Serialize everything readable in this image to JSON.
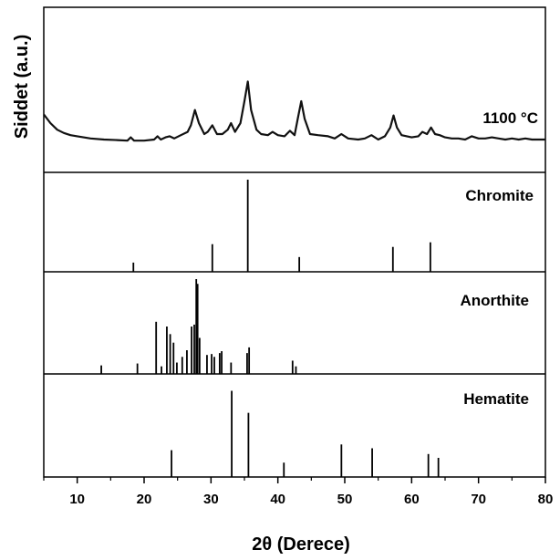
{
  "chart_data": {
    "type": "line",
    "ylabel": "Siddet (a.u.)",
    "xlabel": "2θ (Derece)",
    "xlim": [
      5,
      80
    ],
    "x_ticks": [
      10,
      20,
      30,
      40,
      50,
      60,
      70,
      80
    ],
    "y_ticks_shown": false,
    "grid": false,
    "panels": [
      {
        "name": "1100 °C",
        "type": "line",
        "ylim": [
          0,
          100
        ],
        "x": [
          5,
          6,
          7,
          8,
          9,
          10,
          12,
          14,
          16,
          17.5,
          18,
          18.5,
          20,
          21.5,
          22,
          22.5,
          23.2,
          23.8,
          24.5,
          25.5,
          26.5,
          27,
          27.6,
          28.2,
          29,
          29.5,
          30.2,
          30.9,
          31.7,
          32.5,
          33,
          33.6,
          34.4,
          35,
          35.5,
          36,
          36.8,
          37.5,
          38.5,
          39.2,
          40,
          41,
          41.8,
          42.5,
          43,
          43.5,
          44,
          44.8,
          46,
          47.5,
          48.5,
          49.5,
          50.5,
          52,
          53,
          54,
          55,
          56,
          56.8,
          57.3,
          57.8,
          58.5,
          60,
          61,
          61.6,
          62.3,
          62.9,
          63.5,
          64.2,
          65,
          66,
          67,
          68,
          69,
          70,
          71,
          72,
          73,
          74,
          75,
          76,
          77,
          78,
          79,
          80
        ],
        "y": [
          28,
          20,
          14,
          11,
          9,
          8,
          6,
          5,
          4.5,
          4,
          7,
          4,
          4,
          5,
          8,
          5,
          7,
          8,
          6,
          9,
          12,
          18,
          32,
          20,
          10,
          12,
          18,
          10,
          10,
          14,
          20,
          12,
          20,
          40,
          58,
          32,
          14,
          10,
          9,
          12,
          9,
          8,
          13,
          9,
          25,
          40,
          24,
          10,
          9,
          8,
          6,
          10,
          6,
          5,
          6,
          9,
          5,
          8,
          16,
          27,
          16,
          9,
          7,
          8,
          12,
          10,
          16,
          10,
          9,
          7,
          6,
          6,
          5,
          8,
          6,
          6,
          7,
          6,
          5,
          6,
          5,
          6,
          5,
          5,
          5
        ]
      },
      {
        "name": "Chromite",
        "type": "stick",
        "ylim": [
          0,
          100
        ],
        "x": [
          18.4,
          30.2,
          35.5,
          43.2,
          57.2,
          62.8
        ],
        "y": [
          10,
          30,
          100,
          16,
          27,
          32
        ]
      },
      {
        "name": "Anorthite",
        "type": "stick",
        "ylim": [
          0,
          100
        ],
        "x": [
          13.6,
          19.0,
          21.8,
          22.6,
          23.4,
          23.9,
          24.4,
          24.9,
          25.7,
          26.4,
          27.1,
          27.5,
          27.8,
          28.0,
          28.3,
          29.4,
          30.1,
          30.5,
          31.3,
          31.6,
          33.0,
          35.4,
          35.7,
          42.2,
          42.7
        ],
        "y": [
          9,
          11,
          55,
          8,
          50,
          42,
          33,
          12,
          18,
          25,
          50,
          52,
          100,
          95,
          38,
          20,
          21,
          18,
          22,
          24,
          12,
          22,
          28,
          14,
          8
        ]
      },
      {
        "name": "Hematite",
        "type": "stick",
        "ylim": [
          0,
          100
        ],
        "x": [
          24.1,
          33.1,
          35.6,
          40.9,
          49.5,
          54.1,
          62.5,
          64.0
        ],
        "y": [
          28,
          90,
          67,
          15,
          34,
          30,
          24,
          20
        ]
      }
    ]
  }
}
